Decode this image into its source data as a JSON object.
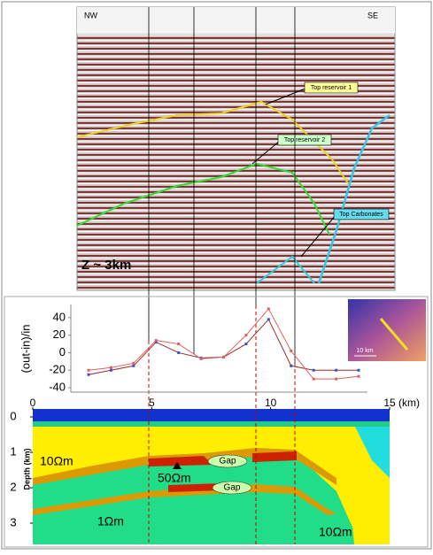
{
  "seismic": {
    "left_label": "NW",
    "right_label": "SE",
    "horizon_1": "Top reservoir 1",
    "horizon_2": "Top reservoir 2",
    "horizon_3": "Top Carbonates",
    "depth_note": "Z ~ 3km"
  },
  "chart_data": {
    "type": "line",
    "ylabel": "(out-in)/in",
    "categories": [
      null,
      null,
      null,
      null,
      null,
      null,
      null,
      null,
      null,
      null,
      null,
      null,
      null
    ],
    "series": [
      {
        "color": "#9b2b2b",
        "values": [
          -25,
          -20,
          -15,
          12,
          0,
          -6,
          -5,
          10,
          38,
          -15,
          -20,
          -20,
          -20
        ]
      },
      {
        "color": "#e06060",
        "values": [
          -20,
          -17,
          -12,
          14,
          10,
          -7,
          -5,
          20,
          50,
          2,
          -30,
          -30,
          -27
        ]
      }
    ],
    "ylim": [
      -45,
      55
    ],
    "yticks": [
      -40,
      -20,
      0,
      20,
      40
    ]
  },
  "inset": {
    "scale_label": "10 km"
  },
  "section": {
    "xticks": [
      0,
      5,
      10,
      15
    ],
    "xlim": [
      0,
      15
    ],
    "x_unit": "(km)",
    "yticks": [
      0,
      1,
      2,
      3
    ],
    "ylim": [
      -0.2,
      3.6
    ],
    "ylabel": "Depth (km)",
    "labels": [
      "10Ωm",
      "50Ωm",
      "Gap",
      "Gap",
      "1Ωm",
      "10Ωm"
    ]
  }
}
